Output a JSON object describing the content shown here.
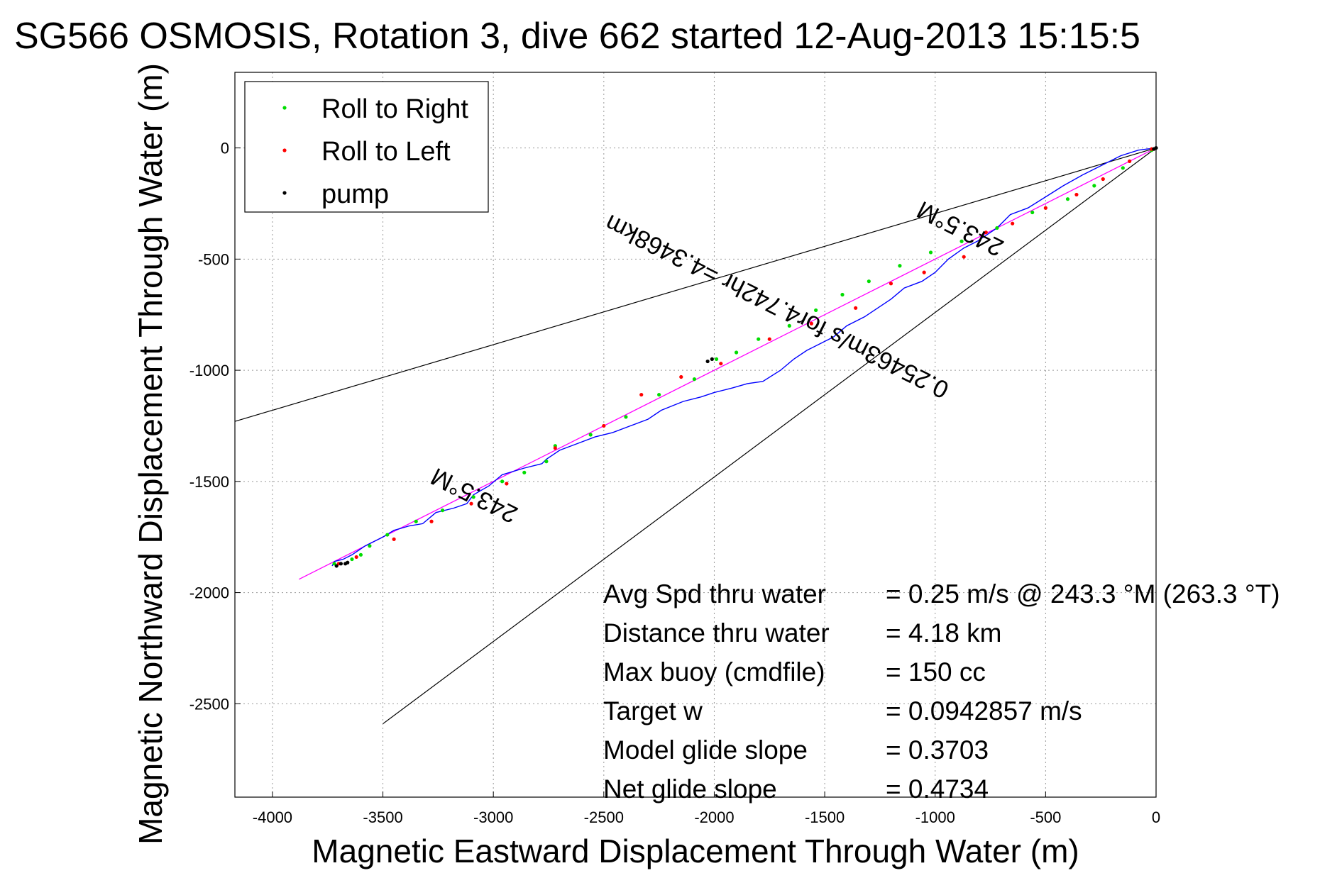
{
  "chart_data": {
    "type": "line",
    "title": "SG566 OSMOSIS, Rotation 3, dive 662 started 12-Aug-2013 15:15:5",
    "xlabel": "Magnetic Eastward Displacement Through Water (m)",
    "ylabel": "Magnetic Northward Displacement Through Water (m)",
    "xlim": [
      -4170,
      0
    ],
    "ylim": [
      -2920,
      340
    ],
    "xticks": [
      -4000,
      -3500,
      -3000,
      -2500,
      -2000,
      -1500,
      -1000,
      -500,
      0
    ],
    "xtick_labels": [
      "-4000",
      "-3500",
      "-3000",
      "-2500",
      "-2000",
      "-1500",
      "-1000",
      "-500",
      "0"
    ],
    "yticks": [
      0,
      -500,
      -1000,
      -1500,
      -2000,
      -2500
    ],
    "ytick_labels": [
      "0",
      "-500",
      "-1000",
      "-1500",
      "-2000",
      "-2500"
    ],
    "grid": true,
    "legend_placement": "top-left",
    "legend": [
      {
        "label": "Roll to Right",
        "color": "#00dd00"
      },
      {
        "label": "Roll to Left",
        "color": "#ff0000"
      },
      {
        "label": "pump",
        "color": "#000000"
      }
    ],
    "series": [
      {
        "color": "#0000ff",
        "x": [
          0,
          -80,
          -160,
          -250,
          -330,
          -420,
          -500,
          -580,
          -660,
          -720,
          -810,
          -870,
          -940,
          -1000,
          -1060,
          -1140,
          -1200,
          -1260,
          -1320,
          -1400,
          -1460,
          -1520,
          -1580,
          -1640,
          -1700,
          -1780,
          -1850,
          -1920,
          -2000,
          -2060,
          -2140,
          -2240,
          -2300,
          -2380,
          -2460,
          -2540,
          -2620,
          -2700,
          -2760,
          -2780,
          -2860,
          -2960,
          -3020,
          -3090,
          -3120,
          -3180,
          -3260,
          -3320,
          -3380,
          -3450,
          -3500,
          -3580,
          -3640,
          -3680,
          -3720,
          -3730
        ],
        "y": [
          0,
          -10,
          -35,
          -80,
          -120,
          -170,
          -220,
          -270,
          -300,
          -360,
          -420,
          -450,
          -500,
          -560,
          -600,
          -630,
          -680,
          -720,
          -760,
          -800,
          -850,
          -880,
          -910,
          -950,
          -1000,
          -1050,
          -1060,
          -1080,
          -1100,
          -1120,
          -1140,
          -1180,
          -1220,
          -1250,
          -1280,
          -1300,
          -1330,
          -1360,
          -1400,
          -1420,
          -1440,
          -1470,
          -1520,
          -1560,
          -1600,
          -1620,
          -1640,
          -1690,
          -1700,
          -1720,
          -1750,
          -1790,
          -1830,
          -1850,
          -1860,
          -1880
        ]
      }
    ],
    "reference_line": {
      "color": "#ff00ff",
      "x": [
        0,
        -3880
      ],
      "y": [
        0,
        -1940
      ]
    },
    "bearing_lines": [
      {
        "color": "#000000",
        "x": [
          0,
          -4170
        ],
        "y": [
          0,
          -1230
        ]
      },
      {
        "color": "#000000",
        "x": [
          0,
          -3500
        ],
        "y": [
          0,
          -2590
        ]
      }
    ],
    "markers": [
      {
        "name": "Roll to Right",
        "color": "#00dd00",
        "x": [
          -3720,
          -3640,
          -3600,
          -3560,
          -3480,
          -3350,
          -3230,
          -3090,
          -2960,
          -2860,
          -2760,
          -2720,
          -2560,
          -2400,
          -2250,
          -2090,
          -1990,
          -1900,
          -1800,
          -1660,
          -1540,
          -1420,
          -1300,
          -1160,
          -1020,
          -880,
          -720,
          -560,
          -400,
          -280,
          -150,
          -20
        ],
        "y": [
          -1870,
          -1850,
          -1830,
          -1790,
          -1740,
          -1680,
          -1630,
          -1570,
          -1500,
          -1460,
          -1410,
          -1340,
          -1290,
          -1210,
          -1110,
          -1040,
          -950,
          -920,
          -860,
          -800,
          -730,
          -660,
          -600,
          -530,
          -470,
          -420,
          -360,
          -290,
          -230,
          -170,
          -90,
          -10
        ]
      },
      {
        "name": "Roll to Left",
        "color": "#ff0000",
        "x": [
          -3700,
          -3620,
          -3450,
          -3280,
          -3100,
          -2940,
          -2720,
          -2500,
          -2330,
          -2150,
          -1970,
          -1750,
          -1560,
          -1360,
          -1200,
          -1050,
          -870,
          -770,
          -650,
          -500,
          -360,
          -240,
          -120,
          -20
        ],
        "y": [
          -1870,
          -1840,
          -1760,
          -1680,
          -1600,
          -1510,
          -1350,
          -1250,
          -1110,
          -1030,
          -970,
          -860,
          -790,
          -720,
          -610,
          -560,
          -490,
          -380,
          -340,
          -270,
          -210,
          -140,
          -60,
          -5
        ]
      },
      {
        "name": "pump",
        "color": "#000000",
        "x": [
          -3710,
          -3690,
          -3670,
          -3660,
          -2030,
          -2010,
          -10,
          0
        ],
        "y": [
          -1880,
          -1870,
          -1870,
          -1865,
          -960,
          -950,
          -5,
          0
        ]
      }
    ],
    "annotations": [
      {
        "text": "243.5°M",
        "x": -3070,
        "y": -1530,
        "rotation": 206.6
      },
      {
        "text": "0.25463m/s for4.742hr =4.3468km",
        "x": -1700,
        "y": -680,
        "rotation": 206.6
      },
      {
        "text": "243.5°M",
        "x": -870,
        "y": -330,
        "rotation": 206.6
      }
    ],
    "stats": [
      {
        "label": "Avg Spd thru water",
        "value": "=  0.25 m/s @ 243.3 °M (263.3 °T)"
      },
      {
        "label": "Distance thru water",
        "value": "=  4.18 km"
      },
      {
        "label": "Max buoy (cmdfile)",
        "value": "= 150 cc"
      },
      {
        "label": "Target w",
        "value": "= 0.0942857 m/s"
      },
      {
        "label": "Model glide slope",
        "value": "= 0.3703"
      },
      {
        "label": "Net glide slope",
        "value": "= 0.4734"
      }
    ]
  }
}
